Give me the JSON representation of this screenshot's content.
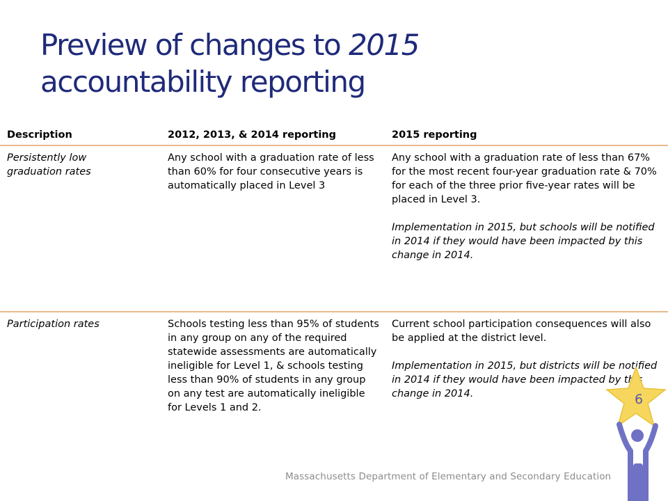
{
  "title": {
    "part1": "Preview of changes to ",
    "year": "2015",
    "part2": "accountability reporting"
  },
  "table": {
    "headers": [
      "Description",
      "2012, 2013, & 2014 reporting",
      "2015 reporting"
    ],
    "rows": [
      {
        "description": "Persistently low graduation rates",
        "old": "Any school with a graduation rate of less than 60% for four consecutive years is automatically placed in Level 3",
        "new": "Any school with a graduation rate of less than 67% for the most recent four-year graduation rate & 70% for each of the three prior five-year rates will be placed in Level 3.",
        "note": "Implementation in 2015, but schools will be notified in 2014 if they would have been impacted by this change in 2014."
      },
      {
        "description": "Participation rates",
        "old": "Schools testing less than 95% of students in any group on any of the required statewide assessments are automatically ineligible for Level 1, & schools testing less than 90% of students in any group on any test are automatically ineligible for Levels 1 and 2.",
        "new": "Current school participation consequences will also be applied at the district level.",
        "note": "Implementation in 2015, but districts will be notified in 2014 if they would have been impacted by this change in 2014."
      }
    ]
  },
  "footer": "Massachusetts Department of Elementary and Secondary Education",
  "page_number": "6",
  "colors": {
    "title": "#1f2a7a",
    "rule": "#e8b98d",
    "star": "#f6d65c",
    "figure": "#6f72c4"
  },
  "icons": [
    "star-figure-icon"
  ]
}
